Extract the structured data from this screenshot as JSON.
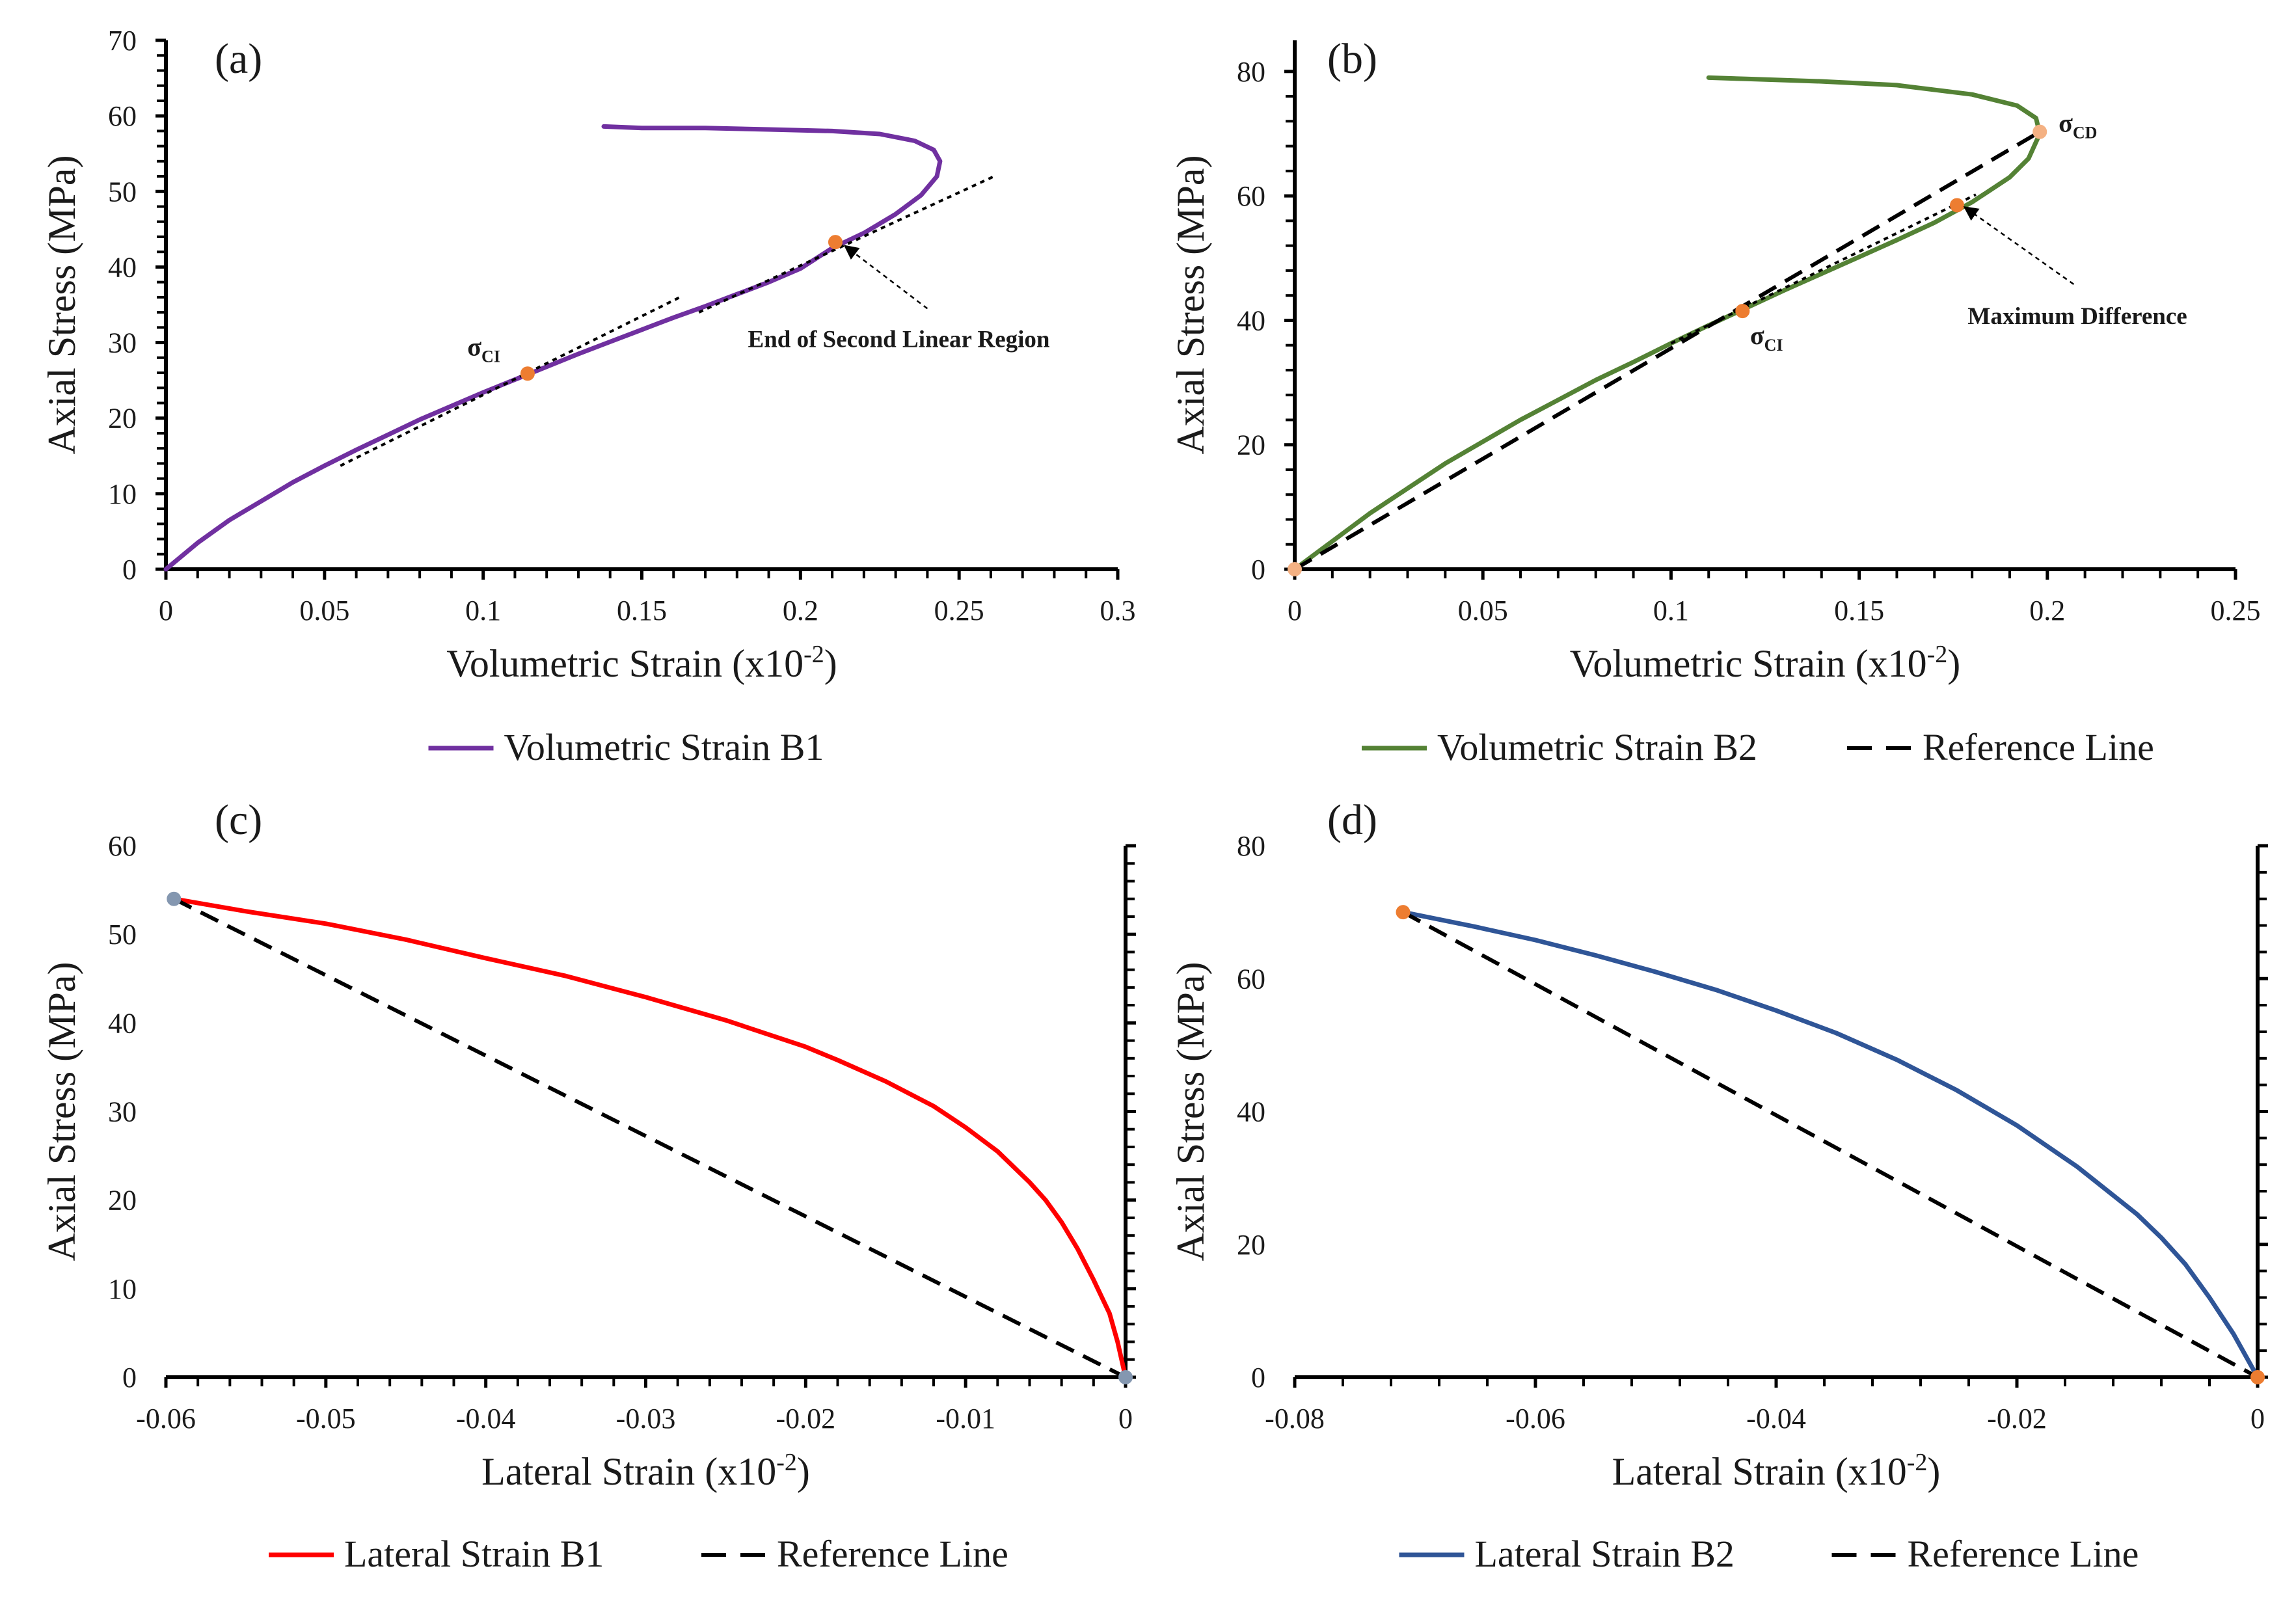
{
  "chart_data": [
    {
      "type": "line",
      "panel": "(a)",
      "xlabel": "Volumetric Strain (x10",
      "xlabel_sup": "-2",
      "xlabel_end": ")",
      "ylabel": "Axial Stress (MPa)",
      "xlim": [
        0,
        0.3
      ],
      "ylim": [
        0,
        70
      ],
      "xticks": [
        0,
        0.05,
        0.1,
        0.15,
        0.2,
        0.25,
        0.3
      ],
      "xtick_labels": [
        "0",
        "0.05",
        "0.1",
        "0.15",
        "0.2",
        "0.25",
        "0.3"
      ],
      "yticks": [
        0,
        10,
        20,
        30,
        40,
        50,
        60,
        70
      ],
      "ytick_labels": [
        "0",
        "10",
        "20",
        "30",
        "40",
        "50",
        "60",
        "70"
      ],
      "x_axis_side": "bottom",
      "y_axis_side": "left",
      "legend_position": "bottom",
      "series": [
        {
          "name": "Volumetric Strain B1",
          "color": "#7030a0",
          "style": "solid",
          "x": [
            0,
            0.01,
            0.02,
            0.03,
            0.04,
            0.05,
            0.06,
            0.07,
            0.08,
            0.09,
            0.1,
            0.11,
            0.12,
            0.13,
            0.14,
            0.15,
            0.16,
            0.17,
            0.18,
            0.19,
            0.2,
            0.21,
            0.22,
            0.23,
            0.238,
            0.243,
            0.244,
            0.242,
            0.236,
            0.225,
            0.21,
            0.19,
            0.17,
            0.15,
            0.138
          ],
          "y": [
            0,
            3.5,
            6.5,
            9.0,
            11.5,
            13.7,
            15.8,
            17.8,
            19.8,
            21.6,
            23.4,
            25.1,
            26.8,
            28.5,
            30.1,
            31.7,
            33.3,
            34.8,
            36.4,
            38.0,
            39.8,
            42.5,
            44.5,
            47.0,
            49.5,
            52.0,
            54.0,
            55.5,
            56.7,
            57.6,
            58.0,
            58.2,
            58.4,
            58.4,
            58.6
          ]
        },
        {
          "name": "",
          "color": "#000000",
          "style": "dotted",
          "x": [
            0.055,
            0.162
          ],
          "y": [
            13.7,
            36.0
          ]
        },
        {
          "name": "",
          "color": "#000000",
          "style": "dotted",
          "x": [
            0.168,
            0.261
          ],
          "y": [
            34.0,
            52.0
          ]
        }
      ],
      "markers": [
        {
          "x": 0.114,
          "y": 25.9,
          "color": "#ed7d31"
        },
        {
          "x": 0.211,
          "y": 43.3,
          "color": "#ed7d31"
        }
      ],
      "annotations": [
        {
          "text": "σ",
          "sub": "CI",
          "x": 0.095,
          "y": 28.3,
          "kind": "sigma"
        },
        {
          "text": "End of Second Linear Region",
          "x": 0.231,
          "y": 29.4,
          "kind": "label"
        }
      ],
      "arrows": [
        {
          "from": [
            0.24,
            34.5
          ],
          "to": [
            0.214,
            42.8
          ]
        }
      ]
    },
    {
      "type": "line",
      "panel": "(b)",
      "xlabel": "Volumetric Strain (x10",
      "xlabel_sup": "-2",
      "xlabel_end": ")",
      "ylabel": "Axial Stress (MPa)",
      "xlim": [
        0,
        0.25
      ],
      "ylim": [
        0,
        85
      ],
      "xticks": [
        0,
        0.05,
        0.1,
        0.15,
        0.2,
        0.25
      ],
      "xtick_labels": [
        "0",
        "0.05",
        "0.1",
        "0.15",
        "0.2",
        "0.25"
      ],
      "yticks": [
        0,
        20,
        40,
        60,
        80
      ],
      "ytick_labels": [
        "0",
        "20",
        "40",
        "60",
        "80"
      ],
      "x_axis_side": "bottom",
      "y_axis_side": "left",
      "legend_position": "bottom",
      "series": [
        {
          "name": "Volumetric Strain B2",
          "color": "#548235",
          "style": "solid",
          "x": [
            0,
            0.01,
            0.02,
            0.03,
            0.04,
            0.05,
            0.06,
            0.07,
            0.08,
            0.09,
            0.1,
            0.11,
            0.12,
            0.13,
            0.14,
            0.15,
            0.16,
            0.17,
            0.18,
            0.19,
            0.195,
            0.198,
            0.197,
            0.192,
            0.18,
            0.16,
            0.14,
            0.12,
            0.11
          ],
          "y": [
            0,
            4.5,
            9.0,
            13.0,
            17.0,
            20.5,
            24.0,
            27.2,
            30.4,
            33.3,
            36.3,
            39.2,
            42.0,
            44.8,
            47.5,
            50.2,
            52.9,
            55.7,
            59.0,
            63.0,
            66.0,
            70.0,
            72.5,
            74.5,
            76.3,
            77.8,
            78.4,
            78.8,
            79.0
          ]
        },
        {
          "name": "Reference Line",
          "color": "#000000",
          "style": "dashed",
          "x": [
            0,
            0.198
          ],
          "y": [
            0,
            70.3
          ]
        },
        {
          "name": "",
          "color": "#000000",
          "style": "dotted",
          "x": [
            0.1,
            0.181
          ],
          "y": [
            36.3,
            60.2
          ]
        }
      ],
      "markers": [
        {
          "x": 0.0,
          "y": 0.0,
          "color": "#f4b183"
        },
        {
          "x": 0.119,
          "y": 41.5,
          "color": "#ed7d31"
        },
        {
          "x": 0.176,
          "y": 58.5,
          "color": "#ed7d31"
        },
        {
          "x": 0.198,
          "y": 70.3,
          "color": "#f4b183"
        }
      ],
      "annotations": [
        {
          "text": "σ",
          "sub": "CD",
          "x": 0.203,
          "y": 70.3,
          "kind": "sigma"
        },
        {
          "text": "σ",
          "sub": "CI",
          "x": 0.121,
          "y": 36.2,
          "kind": "sigma"
        },
        {
          "text": "Maximum Difference",
          "x": 0.208,
          "y": 39.4,
          "kind": "label"
        }
      ],
      "arrows": [
        {
          "from": [
            0.207,
            45.8
          ],
          "to": [
            0.178,
            58.2
          ]
        }
      ]
    },
    {
      "type": "line",
      "panel": "(c)",
      "xlabel": "Lateral Strain (x10",
      "xlabel_sup": "-2",
      "xlabel_end": ")",
      "ylabel": "Axial Stress (MPa)",
      "xlim": [
        -0.06,
        0
      ],
      "ylim": [
        0,
        60
      ],
      "xticks": [
        -0.06,
        -0.05,
        -0.04,
        -0.03,
        -0.02,
        -0.01,
        0
      ],
      "xtick_labels": [
        "-0.06",
        "-0.05",
        "-0.04",
        "-0.03",
        "-0.02",
        "-0.01",
        "0"
      ],
      "yticks": [
        0,
        10,
        20,
        30,
        40,
        50,
        60
      ],
      "ytick_labels": [
        "0",
        "10",
        "20",
        "30",
        "40",
        "50",
        "60"
      ],
      "x_axis_side": "bottom",
      "y_axis_side": "right",
      "legend_position": "bottom",
      "series": [
        {
          "name": "Lateral Strain B1",
          "color": "#ff0000",
          "style": "solid",
          "x": [
            0,
            -0.0005,
            -0.001,
            -0.002,
            -0.003,
            -0.004,
            -0.005,
            -0.006,
            -0.008,
            -0.01,
            -0.012,
            -0.015,
            -0.018,
            -0.02,
            -0.025,
            -0.03,
            -0.035,
            -0.04,
            -0.045,
            -0.05,
            -0.055,
            -0.0595
          ],
          "y": [
            0,
            4.0,
            7.2,
            11.0,
            14.5,
            17.5,
            20.0,
            22.0,
            25.5,
            28.2,
            30.6,
            33.4,
            35.8,
            37.3,
            40.3,
            42.9,
            45.3,
            47.3,
            49.4,
            51.2,
            52.6,
            54.0
          ]
        },
        {
          "name": "Reference Line",
          "color": "#000000",
          "style": "dashed",
          "x": [
            -0.0595,
            0
          ],
          "y": [
            54.0,
            0
          ]
        }
      ],
      "markers": [
        {
          "x": -0.0595,
          "y": 54.0,
          "color": "#8497b0"
        },
        {
          "x": 0,
          "y": 0,
          "color": "#8497b0"
        }
      ],
      "annotations": [],
      "arrows": []
    },
    {
      "type": "line",
      "panel": "(d)",
      "xlabel": "Lateral Strain (x10",
      "xlabel_sup": "-2",
      "xlabel_end": ")",
      "ylabel": "Axial Stress (MPa)",
      "xlim": [
        -0.08,
        0
      ],
      "ylim": [
        0,
        80
      ],
      "xticks": [
        -0.08,
        -0.06,
        -0.04,
        -0.02,
        0
      ],
      "xtick_labels": [
        "-0.08",
        "-0.06",
        "-0.04",
        "-0.02",
        "0"
      ],
      "yticks": [
        0,
        20,
        40,
        60,
        80
      ],
      "ytick_labels": [
        "0",
        "20",
        "40",
        "60",
        "80"
      ],
      "x_axis_side": "bottom",
      "y_axis_side": "right",
      "legend_position": "bottom",
      "series": [
        {
          "name": "Lateral Strain B2",
          "color": "#2f5597",
          "style": "solid",
          "x": [
            0,
            -0.002,
            -0.004,
            -0.006,
            -0.008,
            -0.01,
            -0.015,
            -0.02,
            -0.025,
            -0.03,
            -0.035,
            -0.04,
            -0.045,
            -0.05,
            -0.055,
            -0.06,
            -0.065,
            -0.071
          ],
          "y": [
            0,
            6.5,
            12.0,
            17.0,
            21.0,
            24.5,
            31.7,
            37.9,
            43.2,
            47.8,
            51.8,
            55.2,
            58.3,
            61.0,
            63.5,
            65.8,
            67.8,
            70.0
          ]
        },
        {
          "name": "Reference Line",
          "color": "#000000",
          "style": "dashed",
          "x": [
            -0.071,
            0
          ],
          "y": [
            70.0,
            0
          ]
        }
      ],
      "markers": [
        {
          "x": -0.071,
          "y": 70.0,
          "color": "#ed7d31"
        },
        {
          "x": 0,
          "y": 0,
          "color": "#ed7d31"
        }
      ],
      "annotations": [],
      "arrows": []
    }
  ]
}
